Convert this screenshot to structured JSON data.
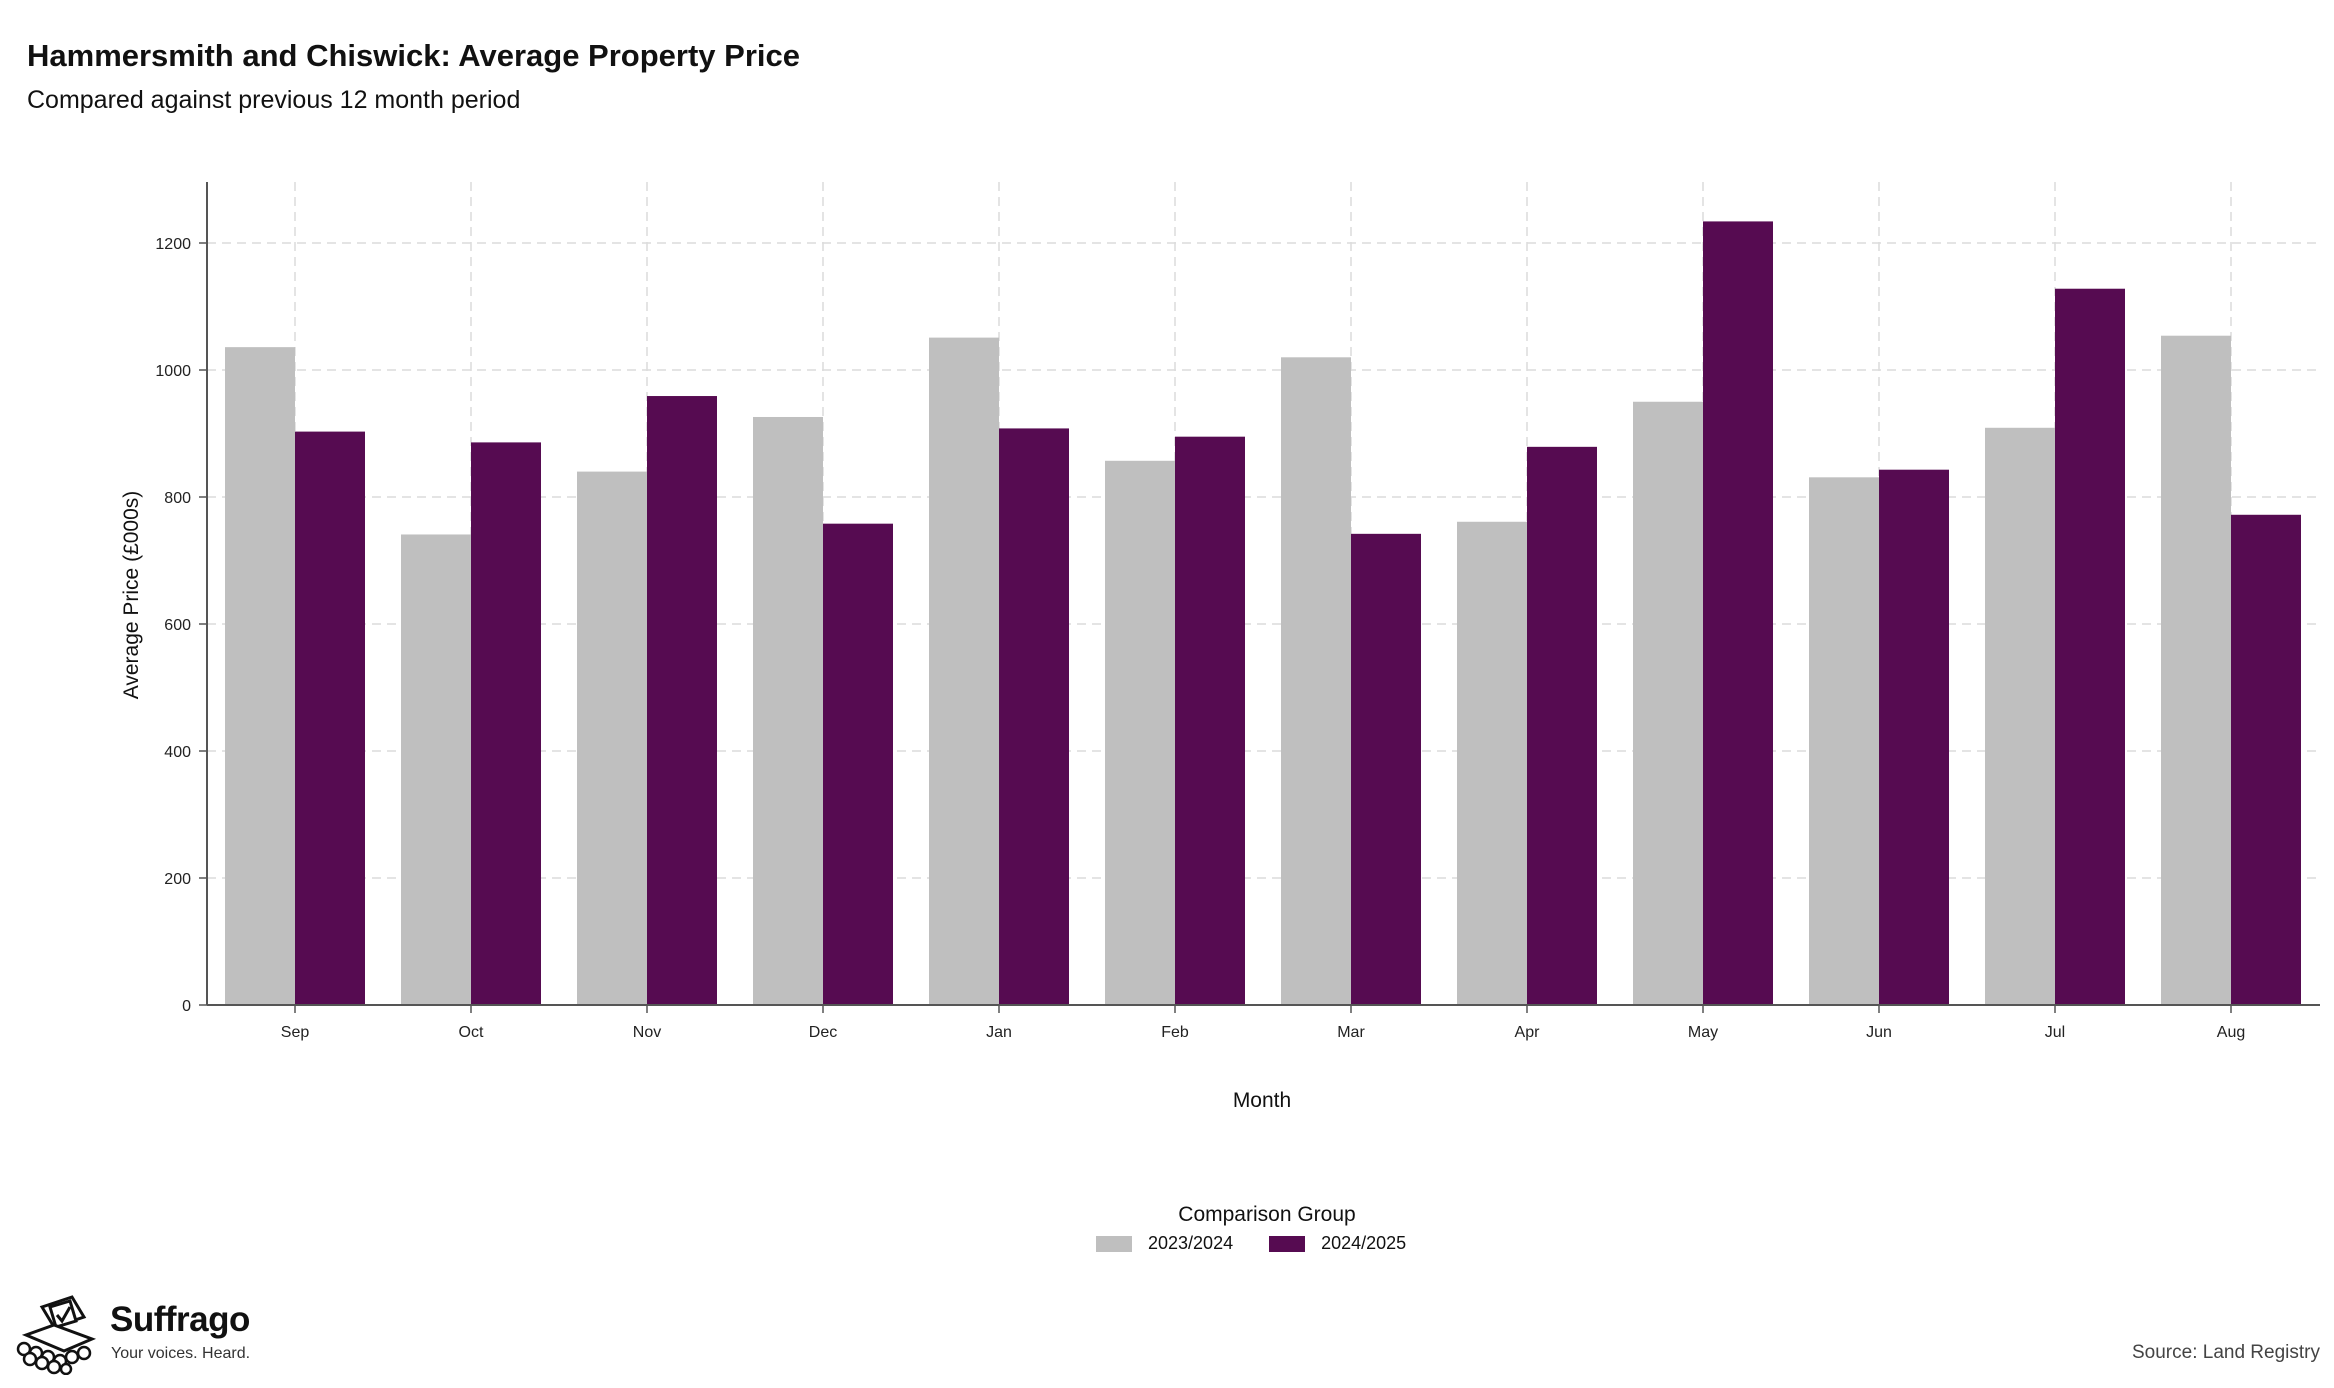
{
  "header": {
    "title": "Hammersmith and Chiswick: Average Property Price",
    "subtitle": "Compared against previous 12 month period"
  },
  "chart_data": {
    "type": "bar",
    "title": "Hammersmith and Chiswick: Average Property Price",
    "subtitle": "Compared against previous 12 month period",
    "xlabel": "Month",
    "ylabel": "Average Price (£000s)",
    "ylim": [
      0,
      1300
    ],
    "yticks": [
      0,
      200,
      400,
      600,
      800,
      1000,
      1200
    ],
    "grid": true,
    "categories": [
      "Sep",
      "Oct",
      "Nov",
      "Dec",
      "Jan",
      "Feb",
      "Mar",
      "Apr",
      "May",
      "Jun",
      "Jul",
      "Aug"
    ],
    "series": [
      {
        "name": "2023/2024",
        "color": "#bfbfbf",
        "values": [
          1036,
          741,
          840,
          926,
          1051,
          857,
          1020,
          761,
          950,
          831,
          909,
          1054
        ]
      },
      {
        "name": "2024/2025",
        "color": "#560b51",
        "values": [
          903,
          886,
          959,
          758,
          908,
          895,
          742,
          879,
          1234,
          843,
          1128,
          772
        ]
      }
    ],
    "legend": {
      "title": "Comparison Group",
      "placement": "bottom-center"
    }
  },
  "footer": {
    "brand_name": "Suffrago",
    "brand_tagline": "Your voices. Heard.",
    "source": "Source: Land Registry"
  }
}
